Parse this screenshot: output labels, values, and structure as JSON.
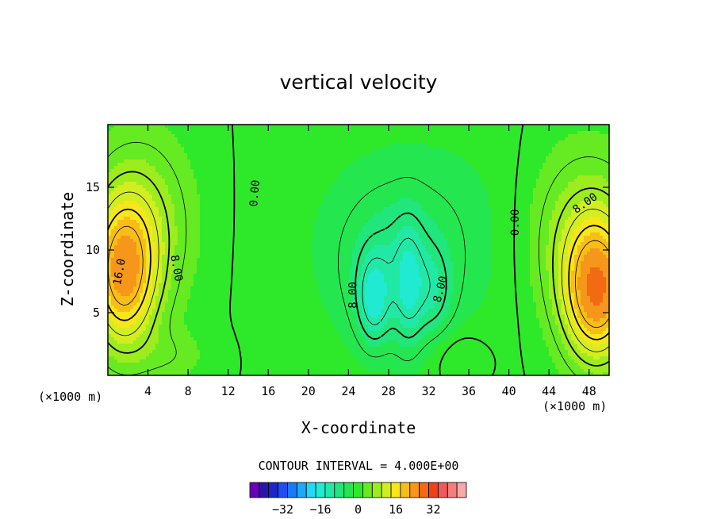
{
  "chart_data": {
    "type": "heatmap",
    "title": "vertical velocity",
    "xlabel": "X-coordinate",
    "ylabel": "Z-coordinate",
    "x_unit_left": "(×1000 m)",
    "x_unit_right": "(×1000 m)",
    "xlim": [
      0,
      50
    ],
    "ylim": [
      0,
      20
    ],
    "x_ticks": [
      4,
      8,
      12,
      16,
      20,
      24,
      28,
      32,
      36,
      40,
      44,
      48
    ],
    "y_ticks": [
      5,
      10,
      15
    ],
    "contour_interval_text": "CONTOUR INTERVAL = 4.000E+00",
    "contour_interval": 4,
    "contour_labels": [
      {
        "text": "16.0",
        "x": 1.5,
        "y": 8.2,
        "angle": -80
      },
      {
        "text": "8.00",
        "x": 6.5,
        "y": 8.5,
        "angle": 80
      },
      {
        "text": "0.00",
        "x": 15.0,
        "y": 14.5,
        "angle": -85
      },
      {
        "text": "8.00",
        "x": 24.8,
        "y": 6.4,
        "angle": -90
      },
      {
        "text": "8.00",
        "x": 33.5,
        "y": 6.8,
        "angle": -75
      },
      {
        "text": "0.00",
        "x": 41.0,
        "y": 12.2,
        "angle": -90
      },
      {
        "text": "8.00",
        "x": 47.8,
        "y": 13.5,
        "angle": -35
      }
    ],
    "field_features": [
      {
        "sign": 1,
        "x": 1.5,
        "z": 8.0,
        "amp": 20,
        "sx": 2.3,
        "sz": 4.2
      },
      {
        "sign": 1,
        "x": 3.5,
        "z": 12.0,
        "amp": 8,
        "sx": 3.5,
        "sz": 5.0
      },
      {
        "sign": 1,
        "x": 48.8,
        "z": 6.5,
        "amp": 22,
        "sx": 2.3,
        "sz": 3.8
      },
      {
        "sign": 1,
        "x": 47.5,
        "z": 11.0,
        "amp": 9,
        "sx": 4.0,
        "sz": 5.0
      },
      {
        "sign": -1,
        "x": 31.0,
        "z": 11.0,
        "amp": 4,
        "sx": 8.0,
        "sz": 6.0
      },
      {
        "sign": -1,
        "x": 28.5,
        "z": 8.0,
        "amp": 6,
        "sx": 3.5,
        "sz": 4.0
      },
      {
        "sign": -1,
        "x": 26.5,
        "z": 6.0,
        "amp": 10,
        "sx": 1.1,
        "sz": 2.4
      },
      {
        "sign": -1,
        "x": 30.0,
        "z": 7.0,
        "amp": 7,
        "sx": 1.0,
        "sz": 3.5
      },
      {
        "sign": -1,
        "x": 32.5,
        "z": 6.5,
        "amp": 5,
        "sx": 1.3,
        "sz": 2.5
      },
      {
        "sign": 1,
        "x": 6.5,
        "z": 1.5,
        "amp": 3,
        "sx": 2.5,
        "sz": 1.5
      },
      {
        "sign": 1,
        "x": 35.0,
        "z": 1.5,
        "amp": 3,
        "sx": 2.0,
        "sz": 1.5
      }
    ],
    "colorbar": {
      "colors": [
        "#6a00b8",
        "#2a14a8",
        "#1b28c8",
        "#1e4ef0",
        "#1a7af5",
        "#1fa8f5",
        "#22d8f8",
        "#20ead2",
        "#22e8a6",
        "#20e67c",
        "#24e64e",
        "#2ee82a",
        "#66ea22",
        "#9cec1e",
        "#d2ee20",
        "#f6e61a",
        "#f6be16",
        "#f6961a",
        "#f26a12",
        "#f04018",
        "#f05a5a",
        "#f47e7e",
        "#f8a8a8"
      ],
      "tick_labels": [
        "-32",
        "-16",
        "0",
        "16",
        "32"
      ],
      "tick_values": [
        -32,
        -16,
        0,
        16,
        32
      ],
      "levels": [
        -44,
        -40,
        -36,
        -32,
        -28,
        -24,
        -20,
        -16,
        -12,
        -8,
        -4,
        0,
        4,
        8,
        12,
        16,
        20,
        24,
        28,
        32,
        36,
        40,
        44
      ]
    }
  }
}
